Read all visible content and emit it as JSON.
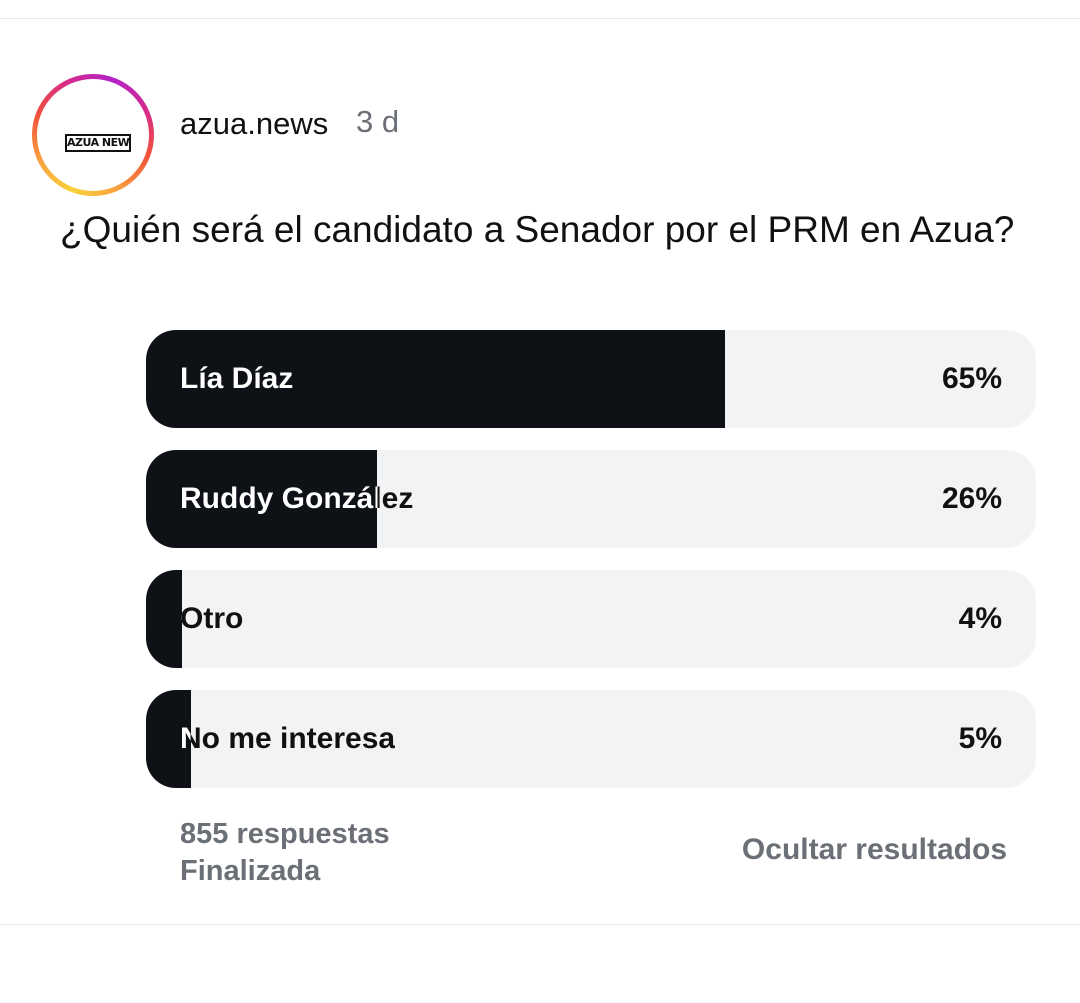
{
  "post": {
    "username": "azua.news",
    "time": "3 d",
    "avatar_logo_text": "AZUA NEWS",
    "question": "¿Quién será el candidato a Senador por el PRM en Azua?"
  },
  "poll": {
    "options": [
      {
        "label": "Lía Díaz",
        "percent_label": "65%",
        "percent": 65
      },
      {
        "label": "Ruddy González",
        "percent_label": "26%",
        "percent": 26
      },
      {
        "label": "Otro",
        "percent_label": "4%",
        "percent": 4
      },
      {
        "label": "No me interesa",
        "percent_label": "5%",
        "percent": 5
      }
    ],
    "responses": "855 respuestas",
    "status": "Finalizada",
    "hide_results": "Ocultar resultados"
  },
  "colors": {
    "fill": "#0e1116",
    "track": "#f2f3f5",
    "muted_text": "#6b6f76"
  }
}
